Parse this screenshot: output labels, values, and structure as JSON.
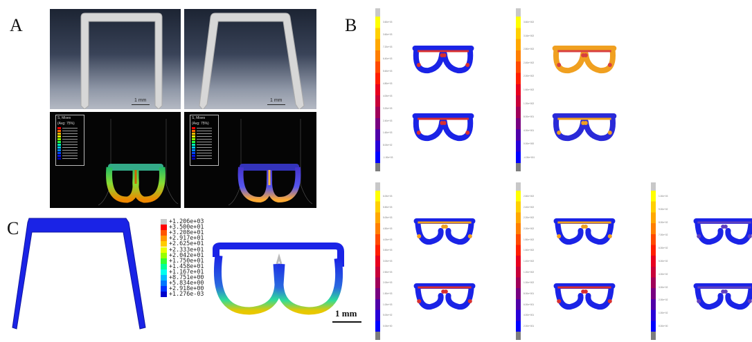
{
  "labels": {
    "A": "A",
    "B": "B",
    "C": "C"
  },
  "panel_a": {
    "scale_bar_left": "1 mm",
    "scale_bar_right": "1 mm",
    "fea_legend_left": [
      "S, Mises",
      "(Avg: 75%)"
    ],
    "fea_legend_right": [
      "S, Mises",
      "(Avg: 75%)"
    ]
  },
  "panel_c": {
    "legend_values": [
      "+1.206e+03",
      "+3.500e+01",
      "+3.208e+01",
      "+2.917e+01",
      "+2.625e+01",
      "+2.333e+01",
      "+2.042e+01",
      "+1.750e+01",
      "+1.458e+01",
      "+1.167e+01",
      "+8.751e+00",
      "+5.834e+00",
      "+2.918e+00",
      "+1.276e-03"
    ],
    "legend_colors": [
      "#c8c8c8",
      "#ff0000",
      "#ff5500",
      "#ff9900",
      "#ffcc00",
      "#e8ff00",
      "#99ff00",
      "#33ff33",
      "#00ff99",
      "#00ffee",
      "#00bbff",
      "#0077ff",
      "#0033ff",
      "#0000cc"
    ],
    "scale_bar": "1 mm"
  },
  "panel_b": {
    "colorbar_colors": [
      "#ffff00",
      "#ffd000",
      "#ffa800",
      "#ff7f00",
      "#ff4a00",
      "#ff1e00",
      "#e8001e",
      "#c80038",
      "#a00058",
      "#780080",
      "#5000a8",
      "#2800d8",
      "#0000ff"
    ],
    "colorbars": [
      {
        "ticks": [
          "3.60e+03",
          "3.60e+03",
          "7.20e+03",
          "6.40e+03",
          "5.60e+03",
          "4.80e+03",
          "4.00e+03",
          "3.20e+03",
          "2.40e+03",
          "1.60e+03",
          "8.00e+02",
          "-1.00e+03"
        ]
      },
      {
        "ticks": [
          "3.60e+002",
          "3.16e+002",
          "2.80e+002",
          "2.40e+002",
          "2.00e+002",
          "1.60e+002",
          "1.20e+002",
          "8.00e+001",
          "4.00e+001",
          "0.00e+000",
          "-4.00e+001"
        ]
      },
      {
        "ticks": [
          "6.00e+03",
          "5.50e+03",
          "5.00e+03",
          "4.50e+03",
          "4.00e+03",
          "3.50e+03",
          "3.00e+03",
          "2.50e+03",
          "2.00e+03",
          "1.50e+03",
          "1.00e+03",
          "5.00e+02",
          "0.00e+00"
        ]
      },
      {
        "ticks": [
          "2.60e+002",
          "2.40e+002",
          "2.20e+002",
          "2.00e+002",
          "1.80e+002",
          "1.60e+002",
          "1.40e+002",
          "1.20e+002",
          "1.00e+002",
          "8.00e+001",
          "6.00e+001",
          "4.00e+001",
          "2.00e+001"
        ]
      },
      {
        "ticks": [
          "1.00e+03",
          "9.00e+02",
          "8.00e+02",
          "7.00e+02",
          "6.00e+02",
          "5.00e+02",
          "4.00e+02",
          "3.00e+02",
          "2.00e+02",
          "1.00e+02",
          "0.00e+00"
        ]
      }
    ]
  }
}
